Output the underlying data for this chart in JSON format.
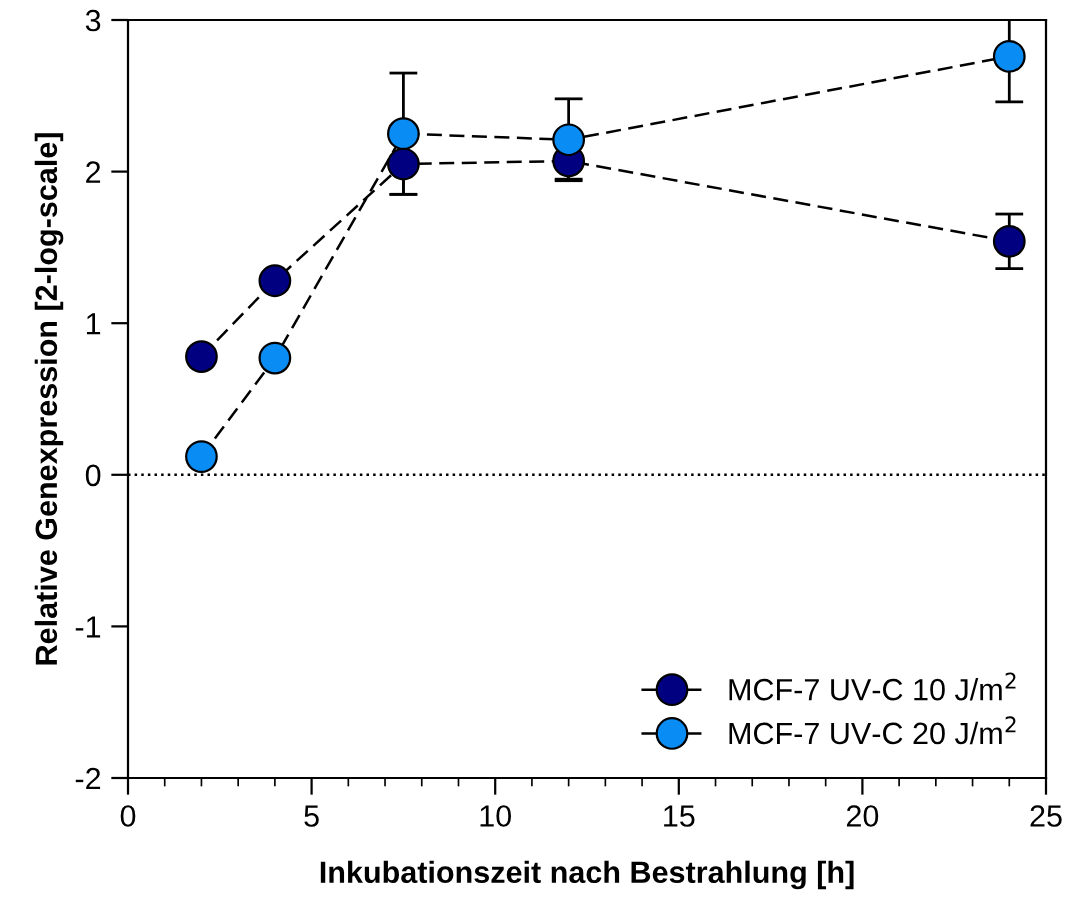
{
  "chart_data": {
    "type": "line",
    "xlabel": "Inkubationszeit nach Bestrahlung [h]",
    "ylabel": "Relative Genexpression [2-log-scale]",
    "x": [
      2,
      4,
      7.5,
      12,
      24
    ],
    "series": [
      {
        "name": "MCF-7 UV-C 10 J/m$^{2}$",
        "color": "#000080",
        "values": [
          0.78,
          1.28,
          2.05,
          2.07,
          1.54
        ],
        "errors": [
          null,
          null,
          0.2,
          0.12,
          0.18
        ]
      },
      {
        "name": "MCF-7 UV-C 20 J/m$^{2}$",
        "color": "#0a8cf5",
        "values": [
          0.12,
          0.77,
          2.25,
          2.21,
          2.76
        ],
        "errors": [
          null,
          null,
          0.4,
          0.27,
          0.3
        ]
      }
    ],
    "xlim": [
      0,
      25
    ],
    "xticks": [
      0,
      5,
      10,
      15,
      20,
      25
    ],
    "ylim": [
      -2,
      3
    ],
    "yticks": [
      -2,
      -1,
      0,
      1,
      2,
      3
    ],
    "ref_lines": [
      {
        "axis": "y",
        "value": 0,
        "color": "#000000",
        "line_style": "dotted"
      }
    ],
    "marker": "circle",
    "line_style": "dashed",
    "grid": false,
    "legend": "bottom right"
  }
}
